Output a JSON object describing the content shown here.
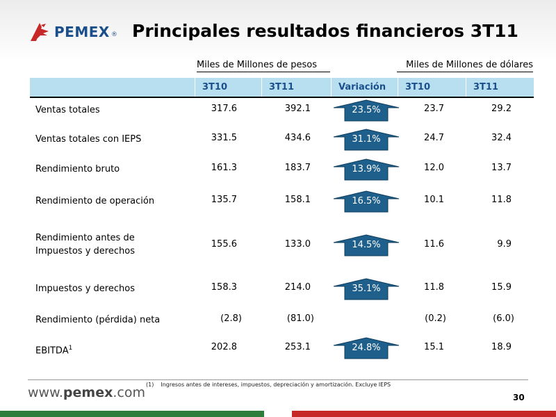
{
  "header": {
    "logo_text": "PEMEX",
    "logo_reg": "®",
    "title": "Principales resultados financieros 3T11"
  },
  "table": {
    "group_pesos": "Miles de Millones de pesos",
    "group_usd": "Miles de Millones de dólares",
    "columns": [
      "3T10",
      "3T11",
      "Variación",
      "3T10",
      "3T11"
    ],
    "rows": [
      {
        "label": "Ventas totales",
        "pesos_3t10": "317.6",
        "pesos_3t11": "392.1",
        "variation": "23.5%",
        "usd_3t10": "23.7",
        "usd_3t11": "29.2"
      },
      {
        "label": "Ventas totales con IEPS",
        "pesos_3t10": "331.5",
        "pesos_3t11": "434.6",
        "variation": "31.1%",
        "usd_3t10": "24.7",
        "usd_3t11": "32.4"
      },
      {
        "label": "Rendimiento bruto",
        "pesos_3t10": "161.3",
        "pesos_3t11": "183.7",
        "variation": "13.9%",
        "usd_3t10": "12.0",
        "usd_3t11": "13.7"
      },
      {
        "label": "Rendimiento de operación",
        "pesos_3t10": "135.7",
        "pesos_3t11": "158.1",
        "variation": "16.5%",
        "usd_3t10": "10.1",
        "usd_3t11": "11.8"
      },
      {
        "label_line1": "Rendimiento antes de",
        "label_line2": "Impuestos y derechos",
        "pesos_3t10": "155.6",
        "pesos_3t11": "133.0",
        "variation": "14.5%",
        "usd_3t10": "11.6",
        "usd_3t11": "9.9"
      },
      {
        "label": "Impuestos y derechos",
        "pesos_3t10": "158.3",
        "pesos_3t11": "214.0",
        "variation": "35.1%",
        "usd_3t10": "11.8",
        "usd_3t11": "15.9"
      },
      {
        "label": "Rendimiento (pérdida) neta",
        "pesos_3t10": "(2.8)",
        "pesos_3t11": "(81.0)",
        "variation": "",
        "usd_3t10": "(0.2)",
        "usd_3t11": "(6.0)"
      },
      {
        "label": "EBITDA",
        "label_sup": "1",
        "pesos_3t10": "202.8",
        "pesos_3t11": "253.1",
        "variation": "24.8%",
        "usd_3t10": "15.1",
        "usd_3t11": "18.9"
      }
    ]
  },
  "arrow_color": "#1f5f8b",
  "footer": {
    "footnote_num": "(1)",
    "footnote_text": "Ingresos antes de intereses, impuestos, depreciación y amortización. Excluye IEPS",
    "website_prefix": "www.",
    "website_brand": "pemex",
    "website_suffix": ".com",
    "page_number": "30"
  }
}
